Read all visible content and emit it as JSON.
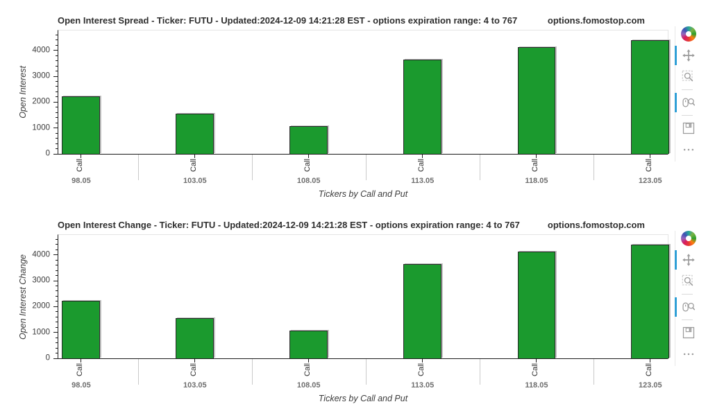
{
  "toolbar": {
    "logo": "bokeh-logo",
    "active_color": "#2f9fd6",
    "icon_color": "#9b9b9b",
    "icons": [
      {
        "name": "pan",
        "active": true
      },
      {
        "name": "box-zoom",
        "active": false
      },
      {
        "name": "wheel-zoom",
        "active": true
      },
      {
        "name": "save",
        "active": false
      },
      {
        "name": "more-options",
        "active": false
      }
    ]
  },
  "chart_data": [
    {
      "type": "bar",
      "title": "Open Interest Spread - Ticker: FUTU - Updated:2024-12-09 14:21:28 EST - options expiration range: 4 to 767",
      "watermark": "options.fomostop.com",
      "categories": [
        "98.05",
        "103.05",
        "108.05",
        "113.05",
        "118.05",
        "123.05"
      ],
      "series": [
        {
          "name": "Call",
          "values": [
            2220,
            1545,
            1075,
            3645,
            4120,
            4400
          ]
        }
      ],
      "bar_sublabel": "Call",
      "xlabel": "Tickers by Call and Put",
      "ylabel": "Open Interest",
      "ylim": [
        0,
        4770
      ],
      "yticks": [
        0,
        1000,
        2000,
        3000,
        4000
      ],
      "minor_tick_step": 200,
      "bar_color": "#1b9a2e",
      "grid": false,
      "legend": "none"
    },
    {
      "type": "bar",
      "title": "Open Interest Change - Ticker: FUTU - Updated:2024-12-09 14:21:28 EST - options expiration range: 4 to 767",
      "watermark": "options.fomostop.com",
      "categories": [
        "98.05",
        "103.05",
        "108.05",
        "113.05",
        "118.05",
        "123.05"
      ],
      "series": [
        {
          "name": "Call",
          "values": [
            2220,
            1545,
            1075,
            3645,
            4120,
            4400
          ]
        }
      ],
      "bar_sublabel": "Call",
      "xlabel": "Tickers by Call and Put",
      "ylabel": "Open Interest Change",
      "ylim": [
        0,
        4770
      ],
      "yticks": [
        0,
        1000,
        2000,
        3000,
        4000
      ],
      "minor_tick_step": 200,
      "bar_color": "#1b9a2e",
      "grid": false,
      "legend": "none"
    }
  ]
}
